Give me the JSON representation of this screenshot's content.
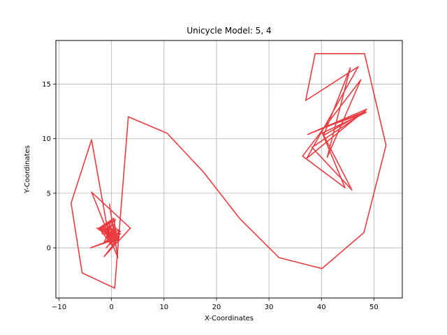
{
  "chart_data": {
    "type": "line",
    "title": "Unicycle Model: 5, 4",
    "xlabel": "X-Coordinates",
    "ylabel": "Y-Coordinates",
    "xlim": [
      -10.6,
      55.4
    ],
    "ylim": [
      -4.6,
      19.0
    ],
    "xticks": [
      -10,
      0,
      10,
      20,
      30,
      40,
      50
    ],
    "yticks": [
      0,
      5,
      10,
      15
    ],
    "grid": true,
    "series": [
      {
        "name": "",
        "color": "#e8282d",
        "x": [
          -0.5,
          1.3,
          -2.0,
          0.3,
          -1.4,
          0.5,
          -2.8,
          1.6,
          -1.0,
          0.9,
          -2.2,
          0.1,
          -0.4,
          1.2,
          -3.8,
          3.6,
          -1.4,
          1.5,
          -4.0,
          0.9,
          -1.3,
          -2.5,
          0.7,
          -0.4,
          1.7,
          -1.0,
          -0.3,
          -0.8,
          1.0,
          -1.8,
          0.2,
          0.6,
          -2.4,
          0.4,
          1.0,
          -1.9,
          0.8,
          -1.3,
          0.3,
          -1.3,
          1.2,
          0.2,
          1.7,
          0.2,
          -1.3,
          -0.4,
          0.8,
          0.0,
          -2.0,
          0.8,
          -1.7,
          0.9,
          -0.7,
          0.3,
          -1.9,
          0.6,
          -0.2,
          0.0,
          0.6,
          -0.2
        ],
        "y": [
          1.0,
          0.6,
          1.8,
          2.4,
          0.5,
          1.1,
          1.8,
          1.5,
          0.0,
          1.0,
          1.6,
          2.5,
          4.0,
          -0.9,
          5.1,
          1.8,
          -0.8,
          1.0,
          0.0,
          0.8,
          1.5,
          1.7,
          2.6,
          0.3,
          1.3,
          0.9,
          2.3,
          1.0,
          1.1,
          1.3,
          2.2,
          0.7,
          1.8,
          2.7,
          1.0,
          1.8,
          1.1,
          1.6,
          0.2,
          1.7,
          0.7,
          2.0,
          1.5,
          1.1,
          1.9,
          0.5,
          1.3,
          2.5,
          1.7,
          0.5,
          1.8,
          1.2,
          2.0,
          0.1,
          1.5,
          1.4,
          0.9,
          1.8,
          0.3,
          1.0
        ]
      },
      {
        "name": "",
        "color": "#e8282d",
        "x": [
          -0.5,
          -3.8,
          -7.7,
          -5.6,
          0.6,
          3.2,
          10.6,
          17.6,
          24.4,
          31.9,
          40.1,
          48.1,
          52.3,
          48.2,
          38.8,
          37.0,
          47.0,
          37.2,
          48.6,
          37.4,
          48.4,
          40.4,
          45.5,
          41.1,
          47.5,
          36.4,
          44.5,
          40.0,
          45.8,
          38.2,
          47.8,
          39.8,
          48.5,
          40.1
        ],
        "y": [
          1.0,
          9.9,
          4.1,
          -2.3,
          -3.7,
          12.0,
          10.5,
          6.9,
          2.7,
          -0.9,
          -1.9,
          1.4,
          9.4,
          17.8,
          17.8,
          13.5,
          16.6,
          8.2,
          12.7,
          10.4,
          12.5,
          10.3,
          16.5,
          8.3,
          15.4,
          8.4,
          5.5,
          10.7,
          5.3,
          9.2,
          12.3,
          10.9,
          12.4,
          10.5
        ]
      }
    ]
  }
}
